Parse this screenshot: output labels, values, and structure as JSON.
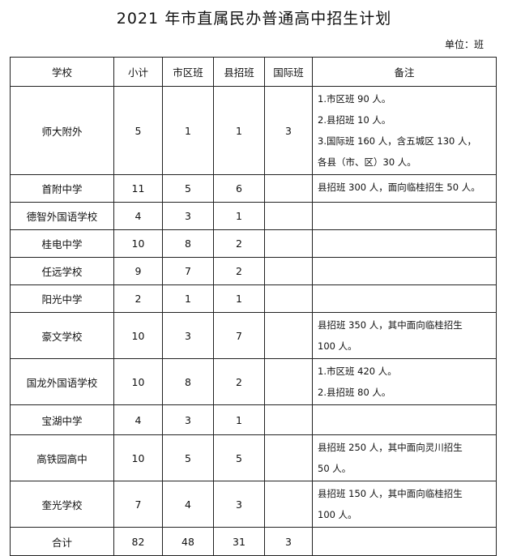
{
  "title": "2021 年市直属民办普通高中招生计划",
  "unit": "单位：班",
  "headers": [
    "学校",
    "小计",
    "市区班",
    "县招班",
    "国际班",
    "备注"
  ],
  "rows": [
    {
      "school": "师大附外",
      "total": "5",
      "city": "1",
      "county": "1",
      "intl": "3",
      "notes": [
        "1.市区班 90 人。",
        "2.县招班 10 人。",
        "3.国际班 160 人，含五城区 130 人，",
        "各县（市、区）30 人。"
      ]
    },
    {
      "school": "首附中学",
      "total": "11",
      "city": "5",
      "county": "6",
      "intl": "",
      "notes": [
        "县招班 300 人，面向临桂招生 50 人。"
      ]
    },
    {
      "school": "德智外国语学校",
      "total": "4",
      "city": "3",
      "county": "1",
      "intl": "",
      "notes": []
    },
    {
      "school": "桂电中学",
      "total": "10",
      "city": "8",
      "county": "2",
      "intl": "",
      "notes": []
    },
    {
      "school": "任远学校",
      "total": "9",
      "city": "7",
      "county": "2",
      "intl": "",
      "notes": []
    },
    {
      "school": "阳光中学",
      "total": "2",
      "city": "1",
      "county": "1",
      "intl": "",
      "notes": []
    },
    {
      "school": "豪文学校",
      "total": "10",
      "city": "3",
      "county": "7",
      "intl": "",
      "notes": [
        "县招班 350 人，其中面向临桂招生",
        "100 人。"
      ]
    },
    {
      "school": "国龙外国语学校",
      "total": "10",
      "city": "8",
      "county": "2",
      "intl": "",
      "notes": [
        "1.市区班 420 人。",
        "2.县招班 80 人。"
      ]
    },
    {
      "school": "宝湖中学",
      "total": "4",
      "city": "3",
      "county": "1",
      "intl": "",
      "notes": []
    },
    {
      "school": "高铁园高中",
      "total": "10",
      "city": "5",
      "county": "5",
      "intl": "",
      "notes": [
        "县招班 250 人，其中面向灵川招生",
        "50 人。"
      ]
    },
    {
      "school": "奎光学校",
      "total": "7",
      "city": "4",
      "county": "3",
      "intl": "",
      "notes": [
        "县招班 150 人，其中面向临桂招生",
        "100 人。"
      ]
    },
    {
      "school": "合计",
      "total": "82",
      "city": "48",
      "county": "31",
      "intl": "3",
      "notes": []
    }
  ]
}
